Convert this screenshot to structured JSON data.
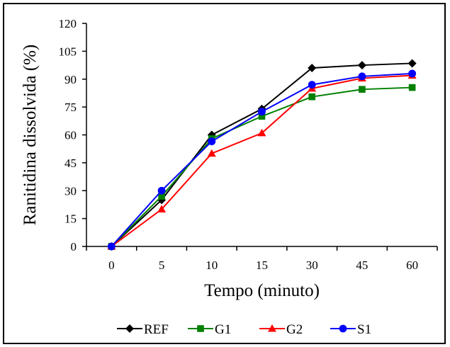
{
  "chart_data": {
    "type": "line",
    "title": "",
    "xlabel": "Tempo (minuto)",
    "ylabel": "Ranitidina dissolvida (%)",
    "categories": [
      "0",
      "5",
      "10",
      "15",
      "30",
      "45",
      "60"
    ],
    "ylim": [
      0,
      120
    ],
    "yticks": [
      "0",
      "15",
      "30",
      "45",
      "60",
      "75",
      "90",
      "105",
      "120"
    ],
    "grid": false,
    "legend_position": "bottom",
    "series": [
      {
        "name": "REF",
        "color": "#000000",
        "marker": "diamond",
        "values": [
          0,
          25,
          60,
          74,
          96,
          97.5,
          98.5
        ]
      },
      {
        "name": "G1",
        "color": "#008000",
        "marker": "square",
        "values": [
          0,
          27,
          58,
          70,
          80.5,
          84.5,
          85.5
        ]
      },
      {
        "name": "G2",
        "color": "#ff0000",
        "marker": "triangle",
        "values": [
          0,
          20,
          50,
          61,
          85,
          90.5,
          92
        ]
      },
      {
        "name": "S1",
        "color": "#0000ff",
        "marker": "circle",
        "values": [
          0,
          30,
          56.5,
          72.5,
          87,
          91.5,
          93
        ]
      }
    ]
  }
}
